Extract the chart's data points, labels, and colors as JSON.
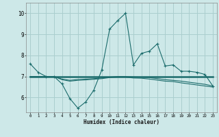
{
  "x": [
    0,
    1,
    2,
    3,
    4,
    5,
    6,
    7,
    8,
    9,
    10,
    11,
    12,
    13,
    14,
    15,
    16,
    17,
    18,
    19,
    20,
    21,
    22,
    23
  ],
  "line1": [
    7.6,
    7.2,
    7.0,
    7.0,
    6.65,
    5.95,
    5.5,
    5.8,
    6.35,
    7.3,
    9.25,
    9.65,
    10.0,
    7.55,
    8.1,
    8.2,
    8.55,
    7.5,
    7.55,
    7.25,
    7.25,
    7.2,
    7.1,
    6.55
  ],
  "line2": [
    7.0,
    7.0,
    7.0,
    7.0,
    7.0,
    7.0,
    7.0,
    7.0,
    7.0,
    7.0,
    7.0,
    7.0,
    7.0,
    7.0,
    7.0,
    7.0,
    7.0,
    7.0,
    7.0,
    7.0,
    7.0,
    7.0,
    7.0,
    7.0
  ],
  "line3": [
    7.0,
    7.0,
    7.0,
    7.0,
    6.88,
    6.82,
    6.86,
    6.88,
    6.9,
    6.93,
    6.97,
    7.0,
    7.0,
    6.98,
    6.97,
    6.95,
    6.9,
    6.85,
    6.82,
    6.78,
    6.73,
    6.68,
    6.63,
    6.55
  ],
  "line4": [
    7.0,
    7.0,
    7.0,
    7.0,
    6.85,
    6.78,
    6.82,
    6.84,
    6.87,
    6.9,
    6.95,
    6.97,
    6.97,
    6.93,
    6.92,
    6.88,
    6.83,
    6.78,
    6.76,
    6.7,
    6.65,
    6.6,
    6.55,
    6.5
  ],
  "bg_color": "#cde8e8",
  "grid_color": "#aacece",
  "line_color": "#1a6b6b",
  "xlim": [
    -0.5,
    23.5
  ],
  "ylim": [
    5.3,
    10.5
  ],
  "xlabel": "Humidex (Indice chaleur)",
  "yticks": [
    6,
    7,
    8,
    9,
    10
  ],
  "xticks": [
    0,
    1,
    2,
    3,
    4,
    5,
    6,
    7,
    8,
    9,
    10,
    11,
    12,
    13,
    14,
    15,
    16,
    17,
    18,
    19,
    20,
    21,
    22,
    23
  ]
}
